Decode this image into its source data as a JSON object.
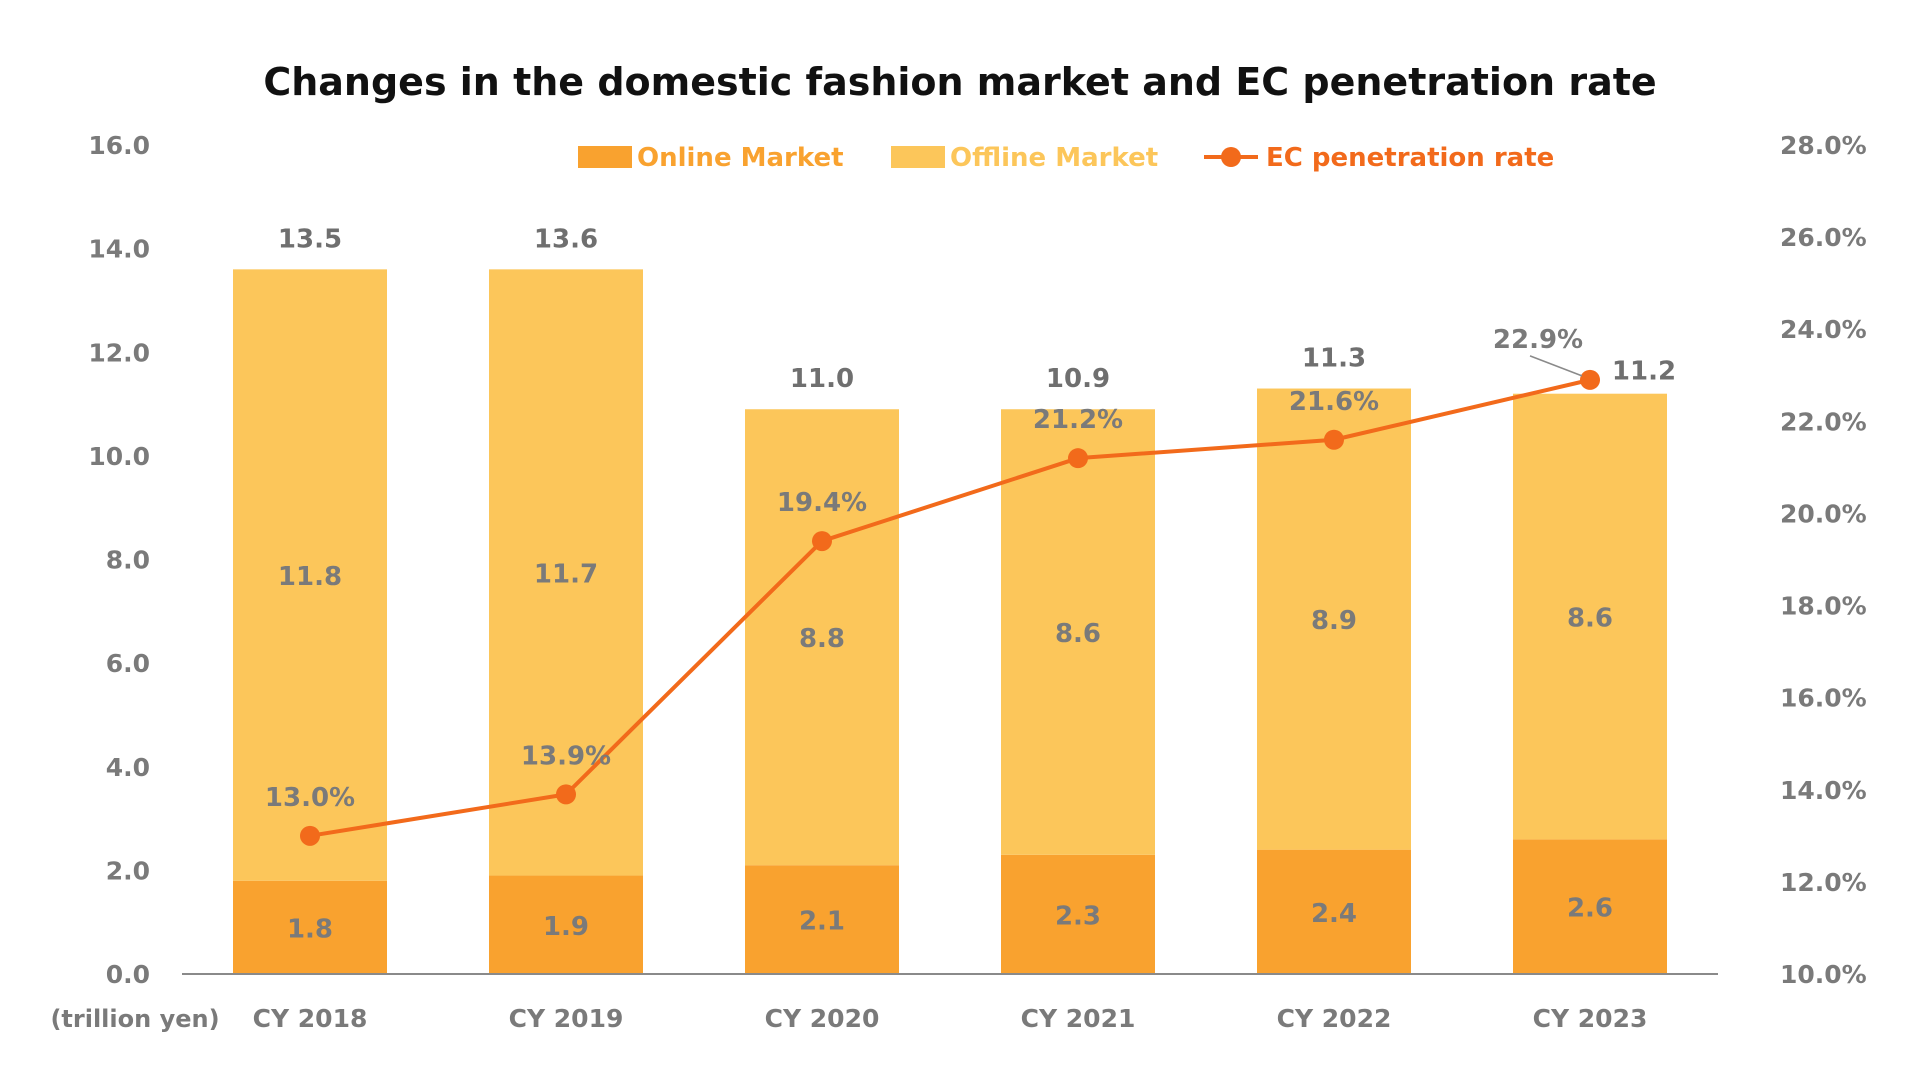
{
  "chart_data": {
    "type": "bar",
    "title": "Changes in the domestic fashion market and EC penetration rate",
    "unit_label": "(trillion yen)",
    "categories": [
      "CY 2018",
      "CY 2019",
      "CY 2020",
      "CY 2021",
      "CY 2022",
      "CY 2023"
    ],
    "series": [
      {
        "name": "Online Market",
        "type": "bar",
        "stack": "market",
        "color": "#f9a22f",
        "values": [
          1.8,
          1.9,
          2.1,
          2.3,
          2.4,
          2.6
        ],
        "labels": [
          "1.8",
          "1.9",
          "2.1",
          "2.3",
          "2.4",
          "2.6"
        ]
      },
      {
        "name": "Offline Market",
        "type": "bar",
        "stack": "market",
        "color": "#fcc65a",
        "values": [
          11.8,
          11.7,
          8.8,
          8.6,
          8.9,
          8.6
        ],
        "labels": [
          "11.8",
          "11.7",
          "8.8",
          "8.6",
          "8.9",
          "8.6"
        ]
      },
      {
        "name": "EC penetration rate",
        "type": "line",
        "axis": "right",
        "color": "#f26a1b",
        "values": [
          13.0,
          13.9,
          19.4,
          21.2,
          21.6,
          22.9
        ],
        "labels": [
          "13.0%",
          "13.9%",
          "19.4%",
          "21.2%",
          "21.6%",
          "22.9%"
        ]
      }
    ],
    "totals": [
      13.5,
      13.6,
      11.0,
      10.9,
      11.3,
      11.2
    ],
    "total_labels": [
      "13.5",
      "13.6",
      "11.0",
      "10.9",
      "11.3",
      "11.2"
    ],
    "ylim": [
      0,
      16
    ],
    "y_ticks": [
      "0.0",
      "2.0",
      "4.0",
      "6.0",
      "8.0",
      "10.0",
      "12.0",
      "14.0",
      "16.0"
    ],
    "y2lim": [
      10,
      28
    ],
    "y2_ticks": [
      "10.0%",
      "12.0%",
      "14.0%",
      "16.0%",
      "18.0%",
      "20.0%",
      "22.0%",
      "24.0%",
      "26.0%",
      "28.0%"
    ],
    "grid": false,
    "legend_position": "top"
  }
}
